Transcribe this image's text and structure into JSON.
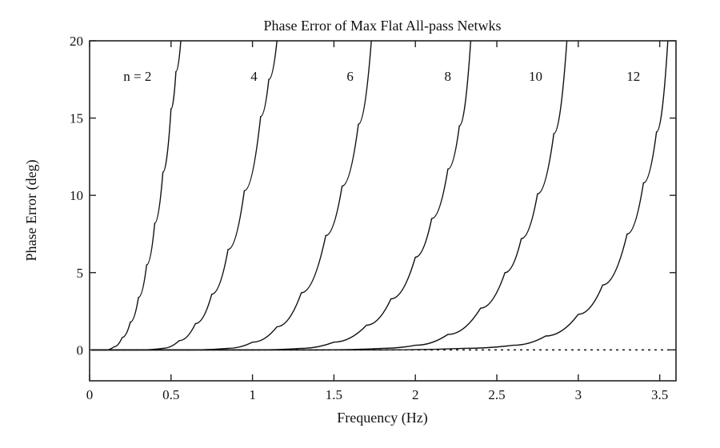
{
  "chart_data": {
    "type": "line",
    "title": "Phase Error of Max Flat All-pass Netwks",
    "xlabel": "Frequency (Hz)",
    "ylabel": "Phase Error (deg)",
    "xlim": [
      0,
      3.6
    ],
    "ylim": [
      -2,
      20
    ],
    "x_ticks": [
      "0",
      "0.5",
      "1",
      "1.5",
      "2",
      "2.5",
      "3",
      "3.5"
    ],
    "x_tick_values": [
      0,
      0.5,
      1,
      1.5,
      2,
      2.5,
      3,
      3.5
    ],
    "y_ticks": [
      "0",
      "5",
      "10",
      "15",
      "20"
    ],
    "y_tick_values": [
      0,
      5,
      10,
      15,
      20
    ],
    "grid": false,
    "legend": "none",
    "series": [
      {
        "name": "n = 2",
        "label_x": 0.38,
        "label_y": 17.4,
        "x": [
          0.1,
          0.15,
          0.2,
          0.25,
          0.3,
          0.35,
          0.4,
          0.45,
          0.5,
          0.53,
          0.56
        ],
        "y": [
          0.0,
          0.2,
          0.8,
          1.8,
          3.4,
          5.5,
          8.2,
          11.5,
          15.6,
          18.0,
          20.0
        ]
      },
      {
        "name": "4",
        "label_x": 1.03,
        "label_y": 17.4,
        "x": [
          0.3,
          0.45,
          0.55,
          0.65,
          0.75,
          0.85,
          0.95,
          1.05,
          1.1,
          1.15
        ],
        "y": [
          0.0,
          0.1,
          0.6,
          1.7,
          3.6,
          6.5,
          10.3,
          15.1,
          17.5,
          20.0
        ]
      },
      {
        "name": "6",
        "label_x": 1.62,
        "label_y": 17.4,
        "x": [
          0.6,
          0.85,
          1.0,
          1.15,
          1.3,
          1.45,
          1.55,
          1.65,
          1.73
        ],
        "y": [
          0.0,
          0.1,
          0.5,
          1.5,
          3.7,
          7.4,
          10.6,
          14.6,
          20.0
        ]
      },
      {
        "name": "8",
        "label_x": 2.22,
        "label_y": 17.4,
        "x": [
          1.0,
          1.3,
          1.5,
          1.7,
          1.85,
          2.0,
          2.1,
          2.2,
          2.27,
          2.34
        ],
        "y": [
          0.0,
          0.1,
          0.5,
          1.6,
          3.3,
          6.0,
          8.5,
          11.7,
          14.5,
          20.0
        ]
      },
      {
        "name": "10",
        "label_x": 2.78,
        "label_y": 17.4,
        "x": [
          1.4,
          1.8,
          2.0,
          2.2,
          2.4,
          2.55,
          2.65,
          2.75,
          2.85,
          2.93
        ],
        "y": [
          0.0,
          0.1,
          0.3,
          1.0,
          2.7,
          5.0,
          7.2,
          10.1,
          14.0,
          20.0
        ]
      },
      {
        "name": "12",
        "label_x": 3.38,
        "label_y": 17.4,
        "x": [
          1.8,
          2.3,
          2.6,
          2.8,
          3.0,
          3.15,
          3.3,
          3.4,
          3.48,
          3.55
        ],
        "y": [
          0.0,
          0.1,
          0.3,
          0.9,
          2.3,
          4.2,
          7.5,
          10.8,
          14.1,
          20.0
        ]
      }
    ]
  }
}
